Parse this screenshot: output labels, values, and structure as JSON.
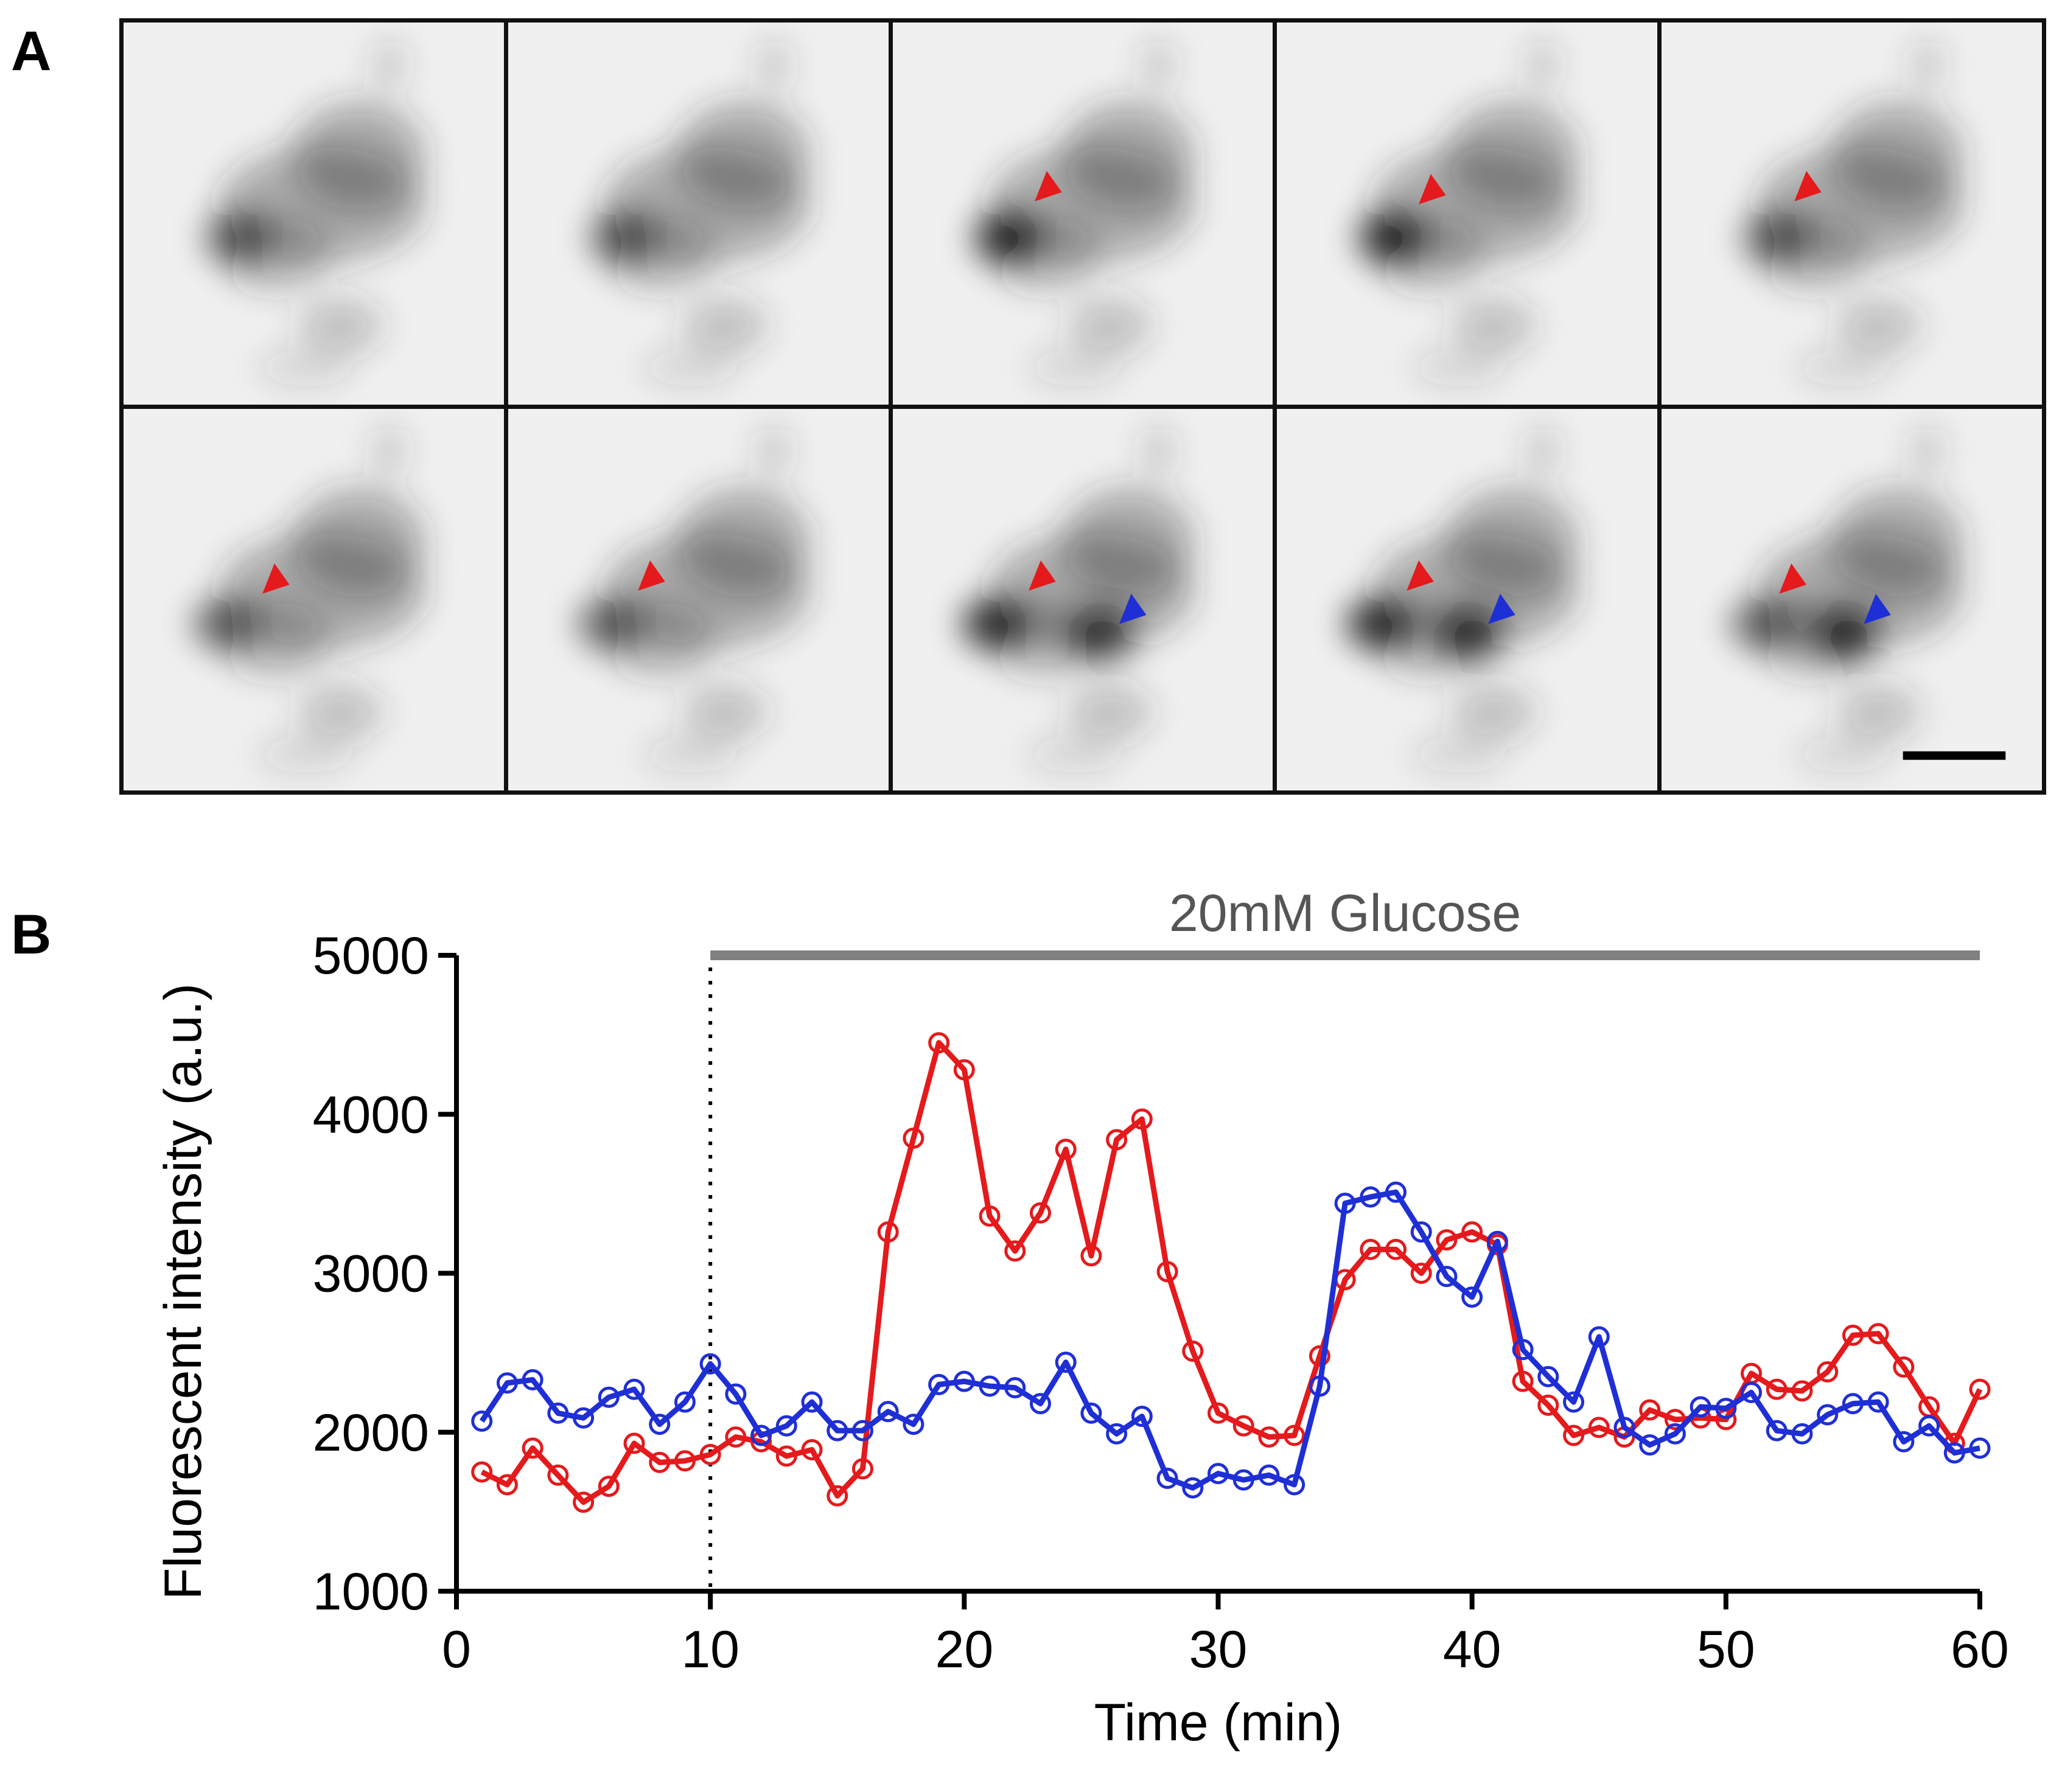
{
  "panel_a": {
    "label": "A",
    "frames": [
      {
        "markers": []
      },
      {
        "markers": []
      },
      {
        "markers": [
          "red"
        ]
      },
      {
        "markers": [
          "red"
        ]
      },
      {
        "markers": [
          "red"
        ]
      },
      {
        "markers": [
          "red"
        ]
      },
      {
        "markers": [
          "red"
        ]
      },
      {
        "markers": [
          "red",
          "blue"
        ]
      },
      {
        "markers": [
          "red",
          "blue"
        ]
      },
      {
        "markers": [
          "red",
          "blue"
        ]
      }
    ],
    "has_scale_bar": true
  },
  "panel_b": {
    "label": "B"
  },
  "colors": {
    "red": "#e41a1c",
    "blue": "#1f2fd6",
    "glucose_bar": "#808080"
  },
  "chart_data": {
    "type": "line",
    "title": "",
    "xlabel": "Time (min)",
    "ylabel": "Fluorescent intensity (a.u.)",
    "xlim": [
      0,
      60
    ],
    "ylim": [
      1000,
      5000
    ],
    "xticks": [
      0,
      10,
      20,
      30,
      40,
      50,
      60
    ],
    "yticks": [
      1000,
      2000,
      3000,
      4000,
      5000
    ],
    "grid": false,
    "annotation": {
      "text": "20mM Glucose",
      "x_start": 10,
      "x_end": 60
    },
    "stimulus_line_x": 10,
    "x": [
      1,
      2,
      3,
      4,
      5,
      6,
      7,
      8,
      9,
      10,
      11,
      12,
      13,
      14,
      15,
      16,
      17,
      18,
      19,
      20,
      21,
      22,
      23,
      24,
      25,
      26,
      27,
      28,
      29,
      30,
      31,
      32,
      33,
      34,
      35,
      36,
      37,
      38,
      39,
      40,
      41,
      42,
      43,
      44,
      45,
      46,
      47,
      48,
      49,
      50,
      51,
      52,
      53,
      54,
      55,
      56,
      57,
      58,
      59,
      60
    ],
    "series": [
      {
        "color": "red",
        "marker": "open-circle",
        "values": [
          1750,
          1670,
          1900,
          1730,
          1560,
          1660,
          1930,
          1810,
          1820,
          1860,
          1970,
          1940,
          1850,
          1890,
          1600,
          1770,
          3260,
          3850,
          4450,
          4280,
          3360,
          3140,
          3380,
          3780,
          3110,
          3840,
          3970,
          3010,
          2510,
          2120,
          2040,
          1970,
          1980,
          2480,
          2960,
          3150,
          3150,
          3000,
          3210,
          3260,
          3180,
          2320,
          2170,
          1980,
          2030,
          1970,
          2140,
          2080,
          2090,
          2080,
          2370,
          2270,
          2260,
          2380,
          2610,
          2620,
          2410,
          2160,
          1930,
          2270
        ]
      },
      {
        "color": "blue",
        "marker": "open-circle",
        "values": [
          2070,
          2310,
          2330,
          2120,
          2090,
          2220,
          2270,
          2050,
          2190,
          2430,
          2240,
          1980,
          2040,
          2190,
          2010,
          2010,
          2130,
          2050,
          2300,
          2320,
          2290,
          2280,
          2180,
          2440,
          2120,
          1990,
          2100,
          1710,
          1650,
          1740,
          1700,
          1730,
          1670,
          2290,
          3440,
          3480,
          3510,
          3260,
          2980,
          2850,
          3200,
          2520,
          2350,
          2190,
          2600,
          2030,
          1920,
          1990,
          2160,
          2150,
          2250,
          2010,
          1990,
          2110,
          2180,
          2190,
          1940,
          2040,
          1870,
          1900
        ]
      }
    ]
  }
}
